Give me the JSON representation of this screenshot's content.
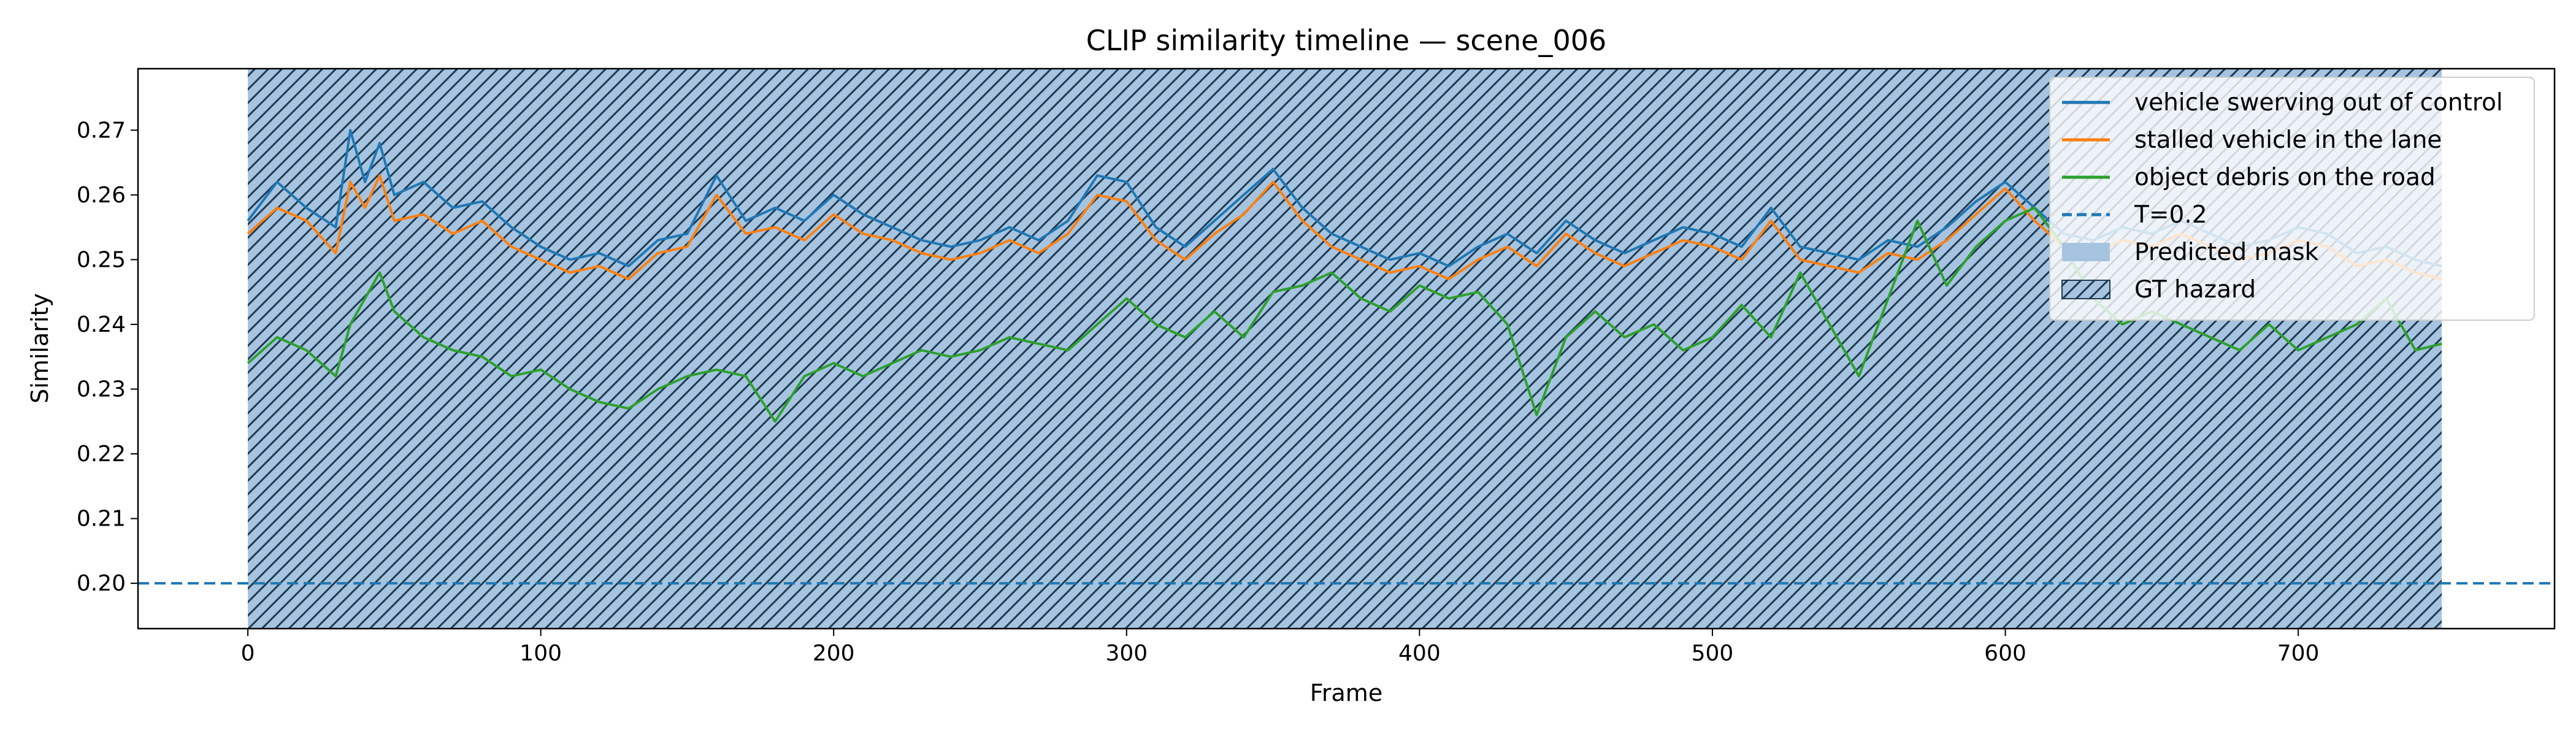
{
  "chart_data": {
    "type": "line",
    "title": "CLIP similarity timeline — scene_006",
    "xlabel": "Frame",
    "ylabel": "Similarity",
    "xlim": [
      -37.5,
      787.5
    ],
    "ylim": [
      0.193,
      0.2795
    ],
    "xticks": [
      0,
      100,
      200,
      300,
      400,
      500,
      600,
      700
    ],
    "yticks": [
      0.2,
      0.21,
      0.22,
      0.23,
      0.24,
      0.25,
      0.26,
      0.27
    ],
    "ytick_labels": [
      "0.20",
      "0.21",
      "0.22",
      "0.23",
      "0.24",
      "0.25",
      "0.26",
      "0.27"
    ],
    "legend_position": "top-right",
    "grid": false,
    "regions": [
      {
        "label": "Predicted mask",
        "x_start": 0,
        "x_end": 749,
        "color": "#a6c4e0"
      },
      {
        "label": "GT hazard",
        "x_start": 0,
        "x_end": 749,
        "hatch": "diagonal",
        "color": "#1f3a52"
      }
    ],
    "threshold": {
      "label": "T=0.2",
      "y": 0.2,
      "color": "#1f77b4"
    },
    "series": [
      {
        "name": "vehicle swerving out of control",
        "color": "#1f77b4",
        "x": [
          0,
          10,
          20,
          30,
          35,
          40,
          45,
          50,
          60,
          70,
          80,
          90,
          100,
          110,
          120,
          130,
          140,
          150,
          160,
          170,
          180,
          190,
          200,
          210,
          220,
          230,
          240,
          250,
          260,
          270,
          280,
          290,
          300,
          310,
          320,
          330,
          340,
          350,
          360,
          370,
          380,
          390,
          400,
          410,
          420,
          430,
          440,
          450,
          460,
          470,
          480,
          490,
          500,
          510,
          520,
          530,
          540,
          550,
          560,
          570,
          580,
          590,
          600,
          610,
          620,
          630,
          640,
          650,
          660,
          670,
          680,
          690,
          700,
          710,
          720,
          730,
          740,
          749
        ],
        "y": [
          0.256,
          0.262,
          0.258,
          0.255,
          0.27,
          0.262,
          0.268,
          0.26,
          0.262,
          0.258,
          0.259,
          0.255,
          0.252,
          0.25,
          0.251,
          0.249,
          0.253,
          0.254,
          0.263,
          0.256,
          0.258,
          0.256,
          0.26,
          0.257,
          0.255,
          0.253,
          0.252,
          0.253,
          0.255,
          0.253,
          0.256,
          0.263,
          0.262,
          0.255,
          0.252,
          0.256,
          0.26,
          0.264,
          0.258,
          0.254,
          0.252,
          0.25,
          0.251,
          0.249,
          0.252,
          0.254,
          0.251,
          0.256,
          0.253,
          0.251,
          0.253,
          0.255,
          0.254,
          0.252,
          0.258,
          0.252,
          0.251,
          0.25,
          0.253,
          0.252,
          0.255,
          0.259,
          0.262,
          0.258,
          0.254,
          0.253,
          0.255,
          0.254,
          0.256,
          0.254,
          0.252,
          0.253,
          0.255,
          0.254,
          0.251,
          0.252,
          0.25,
          0.249
        ]
      },
      {
        "name": "stalled vehicle in the lane",
        "color": "#ff7f0e",
        "x": [
          0,
          10,
          20,
          30,
          35,
          40,
          45,
          50,
          60,
          70,
          80,
          90,
          100,
          110,
          120,
          130,
          140,
          150,
          160,
          170,
          180,
          190,
          200,
          210,
          220,
          230,
          240,
          250,
          260,
          270,
          280,
          290,
          300,
          310,
          320,
          330,
          340,
          350,
          360,
          370,
          380,
          390,
          400,
          410,
          420,
          430,
          440,
          450,
          460,
          470,
          480,
          490,
          500,
          510,
          520,
          530,
          540,
          550,
          560,
          570,
          580,
          590,
          600,
          610,
          620,
          630,
          640,
          650,
          660,
          670,
          680,
          690,
          700,
          710,
          720,
          730,
          740,
          749
        ],
        "y": [
          0.254,
          0.258,
          0.256,
          0.251,
          0.262,
          0.258,
          0.263,
          0.256,
          0.257,
          0.254,
          0.256,
          0.252,
          0.25,
          0.248,
          0.249,
          0.247,
          0.251,
          0.252,
          0.26,
          0.254,
          0.255,
          0.253,
          0.257,
          0.254,
          0.253,
          0.251,
          0.25,
          0.251,
          0.253,
          0.251,
          0.254,
          0.26,
          0.259,
          0.253,
          0.25,
          0.254,
          0.257,
          0.262,
          0.256,
          0.252,
          0.25,
          0.248,
          0.249,
          0.247,
          0.25,
          0.252,
          0.249,
          0.254,
          0.251,
          0.249,
          0.251,
          0.253,
          0.252,
          0.25,
          0.256,
          0.25,
          0.249,
          0.248,
          0.251,
          0.25,
          0.253,
          0.257,
          0.261,
          0.256,
          0.252,
          0.251,
          0.253,
          0.252,
          0.254,
          0.252,
          0.25,
          0.251,
          0.253,
          0.252,
          0.249,
          0.25,
          0.248,
          0.247
        ]
      },
      {
        "name": "object debris on the road",
        "color": "#2ca02c",
        "x": [
          0,
          10,
          20,
          30,
          35,
          40,
          45,
          50,
          60,
          70,
          80,
          90,
          100,
          110,
          120,
          130,
          140,
          150,
          160,
          170,
          180,
          190,
          200,
          210,
          220,
          230,
          240,
          250,
          260,
          270,
          280,
          290,
          300,
          310,
          320,
          330,
          340,
          350,
          360,
          370,
          380,
          390,
          400,
          410,
          420,
          430,
          440,
          450,
          460,
          470,
          480,
          490,
          500,
          510,
          520,
          530,
          540,
          550,
          560,
          570,
          580,
          590,
          600,
          610,
          620,
          630,
          640,
          650,
          660,
          670,
          680,
          690,
          700,
          710,
          720,
          730,
          740,
          749
        ],
        "y": [
          0.234,
          0.238,
          0.236,
          0.232,
          0.24,
          0.244,
          0.248,
          0.242,
          0.238,
          0.236,
          0.235,
          0.232,
          0.233,
          0.23,
          0.228,
          0.227,
          0.23,
          0.232,
          0.233,
          0.232,
          0.225,
          0.232,
          0.234,
          0.232,
          0.234,
          0.236,
          0.235,
          0.236,
          0.238,
          0.237,
          0.236,
          0.24,
          0.244,
          0.24,
          0.238,
          0.242,
          0.238,
          0.245,
          0.246,
          0.248,
          0.244,
          0.242,
          0.246,
          0.244,
          0.245,
          0.24,
          0.226,
          0.238,
          0.242,
          0.238,
          0.24,
          0.236,
          0.238,
          0.243,
          0.238,
          0.248,
          0.24,
          0.232,
          0.244,
          0.256,
          0.246,
          0.252,
          0.256,
          0.258,
          0.252,
          0.244,
          0.24,
          0.242,
          0.24,
          0.238,
          0.236,
          0.24,
          0.236,
          0.238,
          0.24,
          0.244,
          0.236,
          0.237
        ]
      }
    ]
  }
}
